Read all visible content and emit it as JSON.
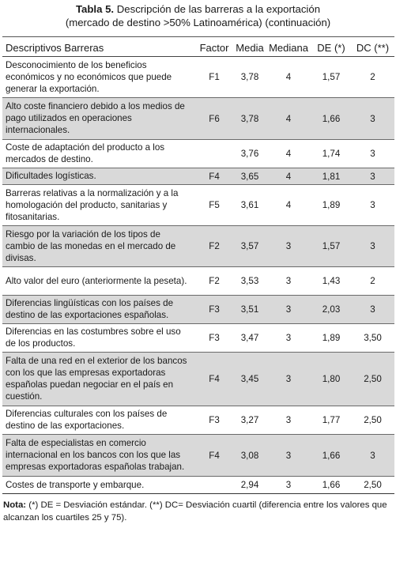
{
  "title": {
    "number": "Tabla 5.",
    "text": "Descripción de las barreras a la exportación",
    "subtitle": "(mercado de destino >50% Latinoamérica) (continuación)"
  },
  "columns": [
    "Descriptivos Barreras",
    "Factor",
    "Media",
    "Mediana",
    "DE (*)",
    "DC (**)"
  ],
  "rows": [
    {
      "desc": "Desconocimiento de los beneficios económicos y no económicos que puede generar la exportación.",
      "factor": "F1",
      "media": "3,78",
      "mediana": "4",
      "de": "1,57",
      "dc": "2"
    },
    {
      "desc": "Alto coste financiero debido a los medios de pago utilizados en operaciones internacionales.",
      "factor": "F6",
      "media": "3,78",
      "mediana": "4",
      "de": "1,66",
      "dc": "3"
    },
    {
      "desc": "Coste de adaptación del producto a los mercados de destino.",
      "factor": "",
      "media": "3,76",
      "mediana": "4",
      "de": "1,74",
      "dc": "3"
    },
    {
      "desc": "Dificultades logísticas.",
      "factor": "F4",
      "media": "3,65",
      "mediana": "4",
      "de": "1,81",
      "dc": "3"
    },
    {
      "desc": "Barreras relativas a la normalización y a la homologación del producto, sanitarias y fitosanitarias.",
      "factor": "F5",
      "media": "3,61",
      "mediana": "4",
      "de": "1,89",
      "dc": "3"
    },
    {
      "desc": "Riesgo por la variación de los tipos de cambio de las monedas en el mercado de divisas.",
      "factor": "F2",
      "media": "3,57",
      "mediana": "3",
      "de": "1,57",
      "dc": "3"
    },
    {
      "desc": "Alto valor del euro (anteriormente la peseta).",
      "factor": "F2",
      "media": "3,53",
      "mediana": "3",
      "de": "1,43",
      "dc": "2"
    },
    {
      "desc": "Diferencias lingüísticas con los países de destino de las exportaciones españolas.",
      "factor": "F3",
      "media": "3,51",
      "mediana": "3",
      "de": "2,03",
      "dc": "3"
    },
    {
      "desc": "Diferencias en las costumbres sobre el uso de los productos.",
      "factor": "F3",
      "media": "3,47",
      "mediana": "3",
      "de": "1,89",
      "dc": "3,50"
    },
    {
      "desc": "Falta de una red en el exterior de los bancos con los que las empresas exportadoras españolas puedan negociar en el país en cuestión.",
      "factor": "F4",
      "media": "3,45",
      "mediana": "3",
      "de": "1,80",
      "dc": "2,50"
    },
    {
      "desc": "Diferencias culturales con los países de destino de las exportaciones.",
      "factor": "F3",
      "media": "3,27",
      "mediana": "3",
      "de": "1,77",
      "dc": "2,50"
    },
    {
      "desc": "Falta de especialistas en comercio internacional en los bancos con los que las empresas exportadoras españolas trabajan.",
      "factor": "F4",
      "media": "3,08",
      "mediana": "3",
      "de": "1,66",
      "dc": "3"
    },
    {
      "desc": "Costes de transporte y embarque.",
      "factor": "",
      "media": "2,94",
      "mediana": "3",
      "de": "1,66",
      "dc": "2,50"
    }
  ],
  "note": {
    "label": "Nota:",
    "text": "(*) DE = Desviación estándar. (**) DC= Desviación cuartil (diferencia entre los valores que alcanzan los cuartiles 25 y 75)."
  }
}
